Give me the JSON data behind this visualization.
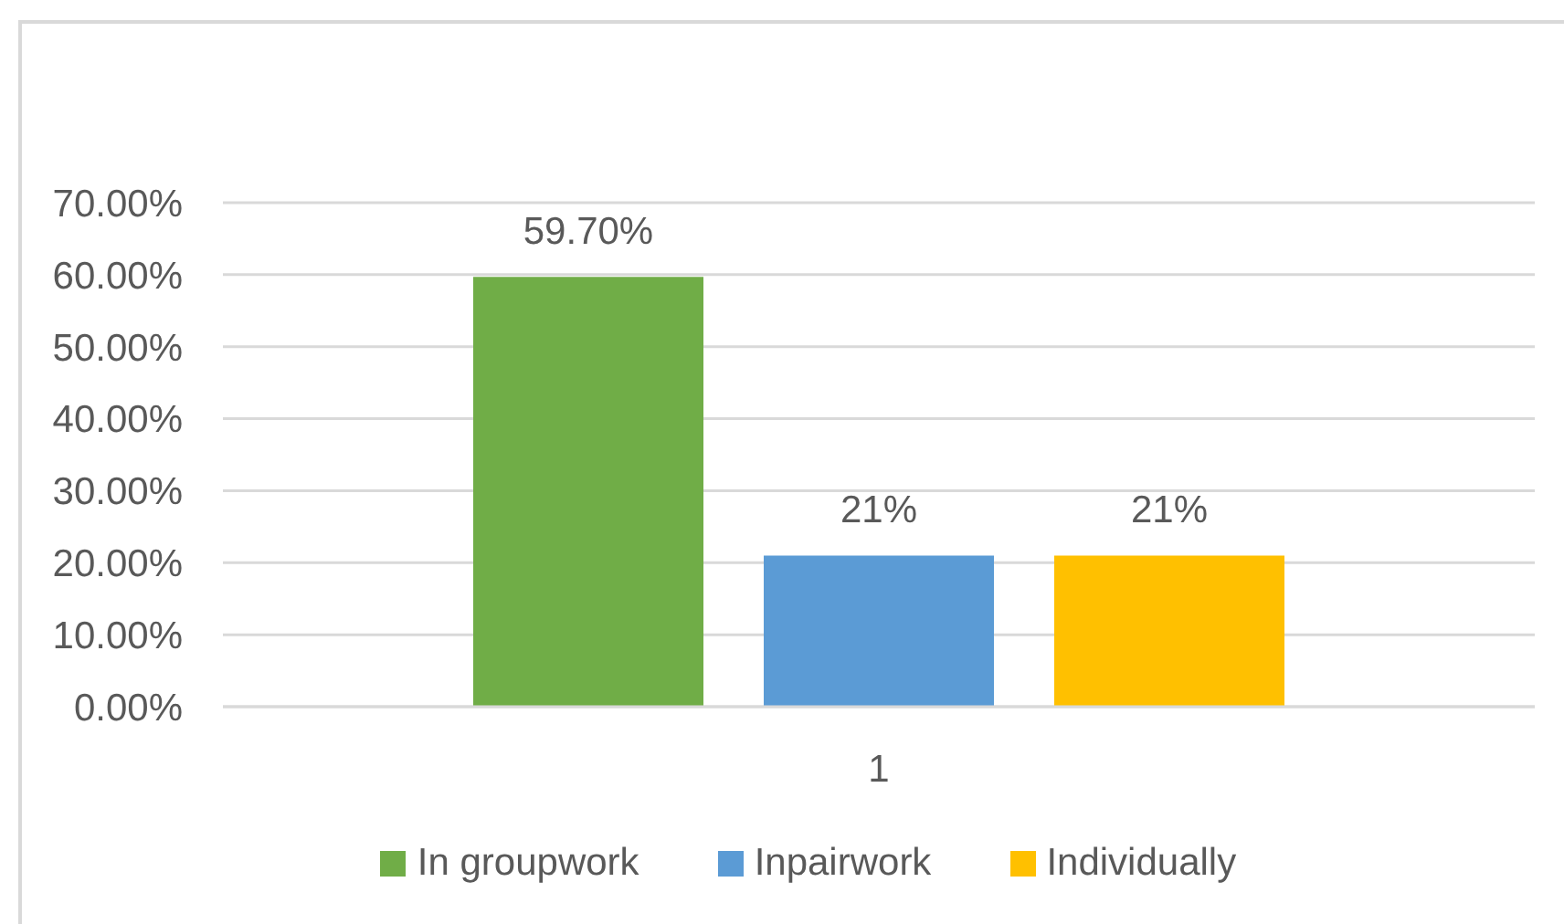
{
  "chart_data": {
    "type": "bar",
    "categories": [
      "1"
    ],
    "series": [
      {
        "name": "In groupwork",
        "color": "#70ad47",
        "values": [
          59.7
        ],
        "value_labels": [
          "59.70%"
        ]
      },
      {
        "name": "Inpairwork",
        "color": "#5b9bd5",
        "values": [
          21
        ],
        "value_labels": [
          "21%"
        ]
      },
      {
        "name": "Individually",
        "color": "#ffc000",
        "values": [
          21
        ],
        "value_labels": [
          "21%"
        ]
      }
    ],
    "ylim": [
      0,
      70
    ],
    "yticks": [
      {
        "value": 0,
        "label": "0.00%"
      },
      {
        "value": 10,
        "label": "10.00%"
      },
      {
        "value": 20,
        "label": "20.00%"
      },
      {
        "value": 30,
        "label": "30.00%"
      },
      {
        "value": 40,
        "label": "40.00%"
      },
      {
        "value": 50,
        "label": "50.00%"
      },
      {
        "value": 60,
        "label": "60.00%"
      },
      {
        "value": 70,
        "label": "70.00%"
      }
    ],
    "grid": "y",
    "legend": "bottom"
  }
}
